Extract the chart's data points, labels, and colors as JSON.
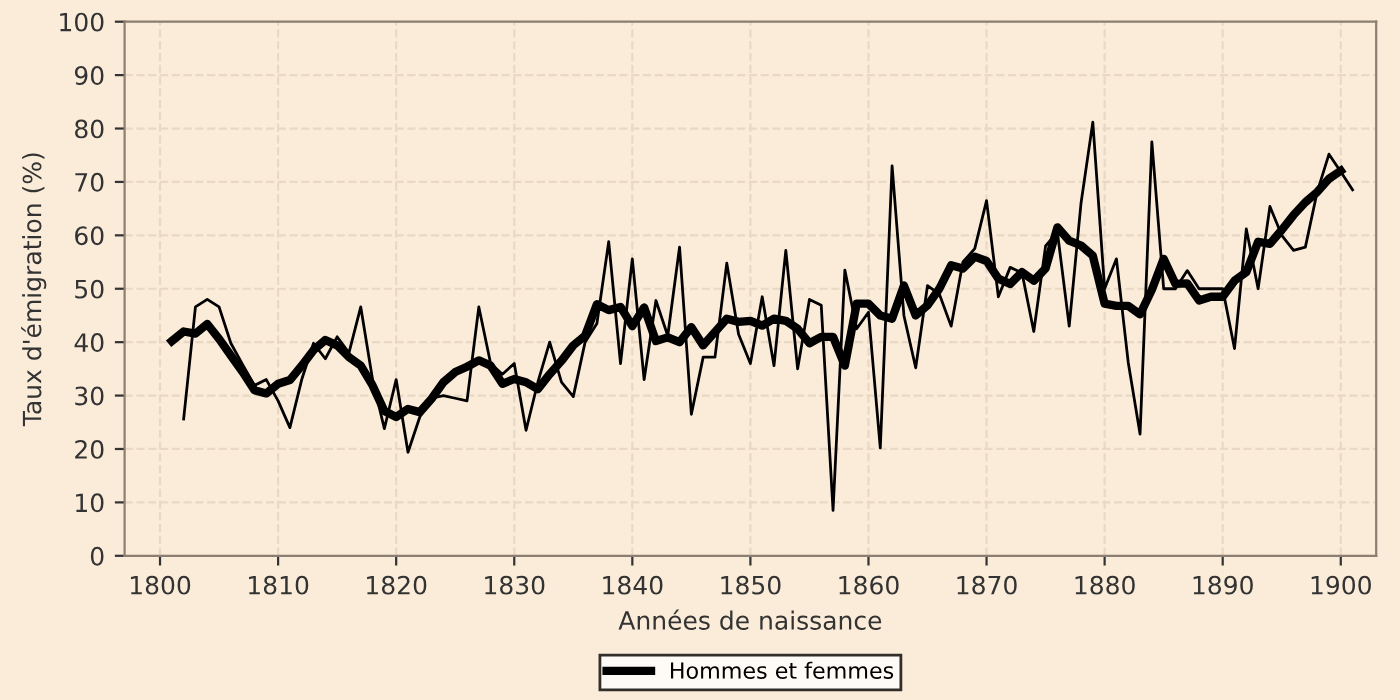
{
  "chart_data": {
    "type": "line",
    "xlabel": "Années de naissance",
    "ylabel": "Taux d'émigration (%)",
    "xlim": [
      1797,
      1903
    ],
    "ylim": [
      0,
      100
    ],
    "xticks": [
      1800,
      1810,
      1820,
      1830,
      1840,
      1850,
      1860,
      1870,
      1880,
      1890,
      1900
    ],
    "yticks": [
      0,
      10,
      20,
      30,
      40,
      50,
      60,
      70,
      80,
      90,
      100
    ],
    "grid": true,
    "legend": "bottom",
    "marker": "none",
    "line_style": "solid",
    "series": [
      {
        "color": "#000000",
        "x": [
          1802,
          1803,
          1804,
          1805,
          1806,
          1807,
          1808,
          1809,
          1810,
          1811,
          1812,
          1813,
          1814,
          1815,
          1816,
          1817,
          1818,
          1819,
          1820,
          1821,
          1822,
          1823,
          1824,
          1825,
          1826,
          1827,
          1828,
          1829,
          1830,
          1831,
          1832,
          1833,
          1834,
          1835,
          1836,
          1837,
          1838,
          1839,
          1840,
          1841,
          1842,
          1843,
          1844,
          1845,
          1846,
          1847,
          1848,
          1849,
          1850,
          1851,
          1852,
          1853,
          1854,
          1855,
          1856,
          1857,
          1858,
          1859,
          1860,
          1861,
          1862,
          1863,
          1864,
          1865,
          1866,
          1867,
          1868,
          1869,
          1870,
          1871,
          1872,
          1873,
          1874,
          1875,
          1876,
          1877,
          1878,
          1879,
          1880,
          1881,
          1882,
          1883,
          1884,
          1885,
          1886,
          1887,
          1888,
          1889,
          1890,
          1891,
          1892,
          1893,
          1894,
          1895,
          1896,
          1897,
          1898,
          1899,
          1900,
          1901
        ],
        "values": [
          25.6,
          46.6,
          48,
          46.6,
          39.8,
          35.8,
          31.9,
          33,
          29,
          24,
          33,
          39.8,
          36.9,
          41,
          38,
          46.6,
          33,
          23.8,
          33,
          19.4,
          26,
          29.5,
          30,
          29.5,
          29,
          46.6,
          36,
          34,
          36,
          23.5,
          32.5,
          40,
          32.5,
          29.8,
          40,
          43.5,
          58.8,
          36,
          55.6,
          33,
          47.8,
          41.2,
          57.8,
          26.5,
          37.2,
          37.2,
          54.8,
          41.5,
          36,
          48.5,
          35.6,
          57.2,
          35,
          48,
          46.9,
          8.5,
          53.5,
          42.5,
          45.6,
          20.2,
          73,
          45,
          35.2,
          50.6,
          49,
          43,
          55,
          57.5,
          66.5,
          48.5,
          54,
          53,
          42,
          58,
          60.6,
          43,
          66,
          81.2,
          50,
          55.6,
          36.2,
          22.8,
          77.5,
          50,
          50,
          53.4,
          50,
          50,
          50,
          38.8,
          61.2,
          50,
          65.4,
          60,
          57.2,
          57.8,
          68.1,
          75.2,
          71.9,
          68.5
        ]
      },
      {
        "name": "Hommes et femmes",
        "color": "#000000",
        "x": [
          1801,
          1802,
          1803,
          1804,
          1805,
          1806,
          1807,
          1808,
          1809,
          1810,
          1811,
          1812,
          1813,
          1814,
          1815,
          1816,
          1817,
          1818,
          1819,
          1820,
          1821,
          1822,
          1823,
          1824,
          1825,
          1826,
          1827,
          1828,
          1829,
          1830,
          1831,
          1832,
          1833,
          1834,
          1835,
          1836,
          1837,
          1838,
          1839,
          1840,
          1841,
          1842,
          1843,
          1844,
          1845,
          1846,
          1847,
          1848,
          1849,
          1850,
          1851,
          1852,
          1853,
          1854,
          1855,
          1856,
          1857,
          1858,
          1859,
          1860,
          1861,
          1862,
          1863,
          1864,
          1865,
          1866,
          1867,
          1868,
          1869,
          1870,
          1871,
          1872,
          1873,
          1874,
          1875,
          1876,
          1877,
          1878,
          1879,
          1880,
          1881,
          1882,
          1883,
          1884,
          1885,
          1886,
          1887,
          1888,
          1889,
          1890,
          1891,
          1892,
          1893,
          1894,
          1895,
          1896,
          1897,
          1898,
          1899,
          1900
        ],
        "values": [
          40.2,
          42,
          41.6,
          43.4,
          40.6,
          37.5,
          34.4,
          31,
          30.4,
          32.2,
          32.9,
          35.6,
          38.5,
          40.4,
          39.4,
          37.2,
          35.6,
          31.9,
          27.1,
          26,
          27.5,
          26.9,
          29.4,
          32.5,
          34.4,
          35.4,
          36.6,
          35.6,
          32.2,
          33.1,
          32.5,
          31.2,
          34,
          36.5,
          39.4,
          41.2,
          47.1,
          46,
          46.6,
          43,
          46.5,
          40.2,
          40.9,
          40,
          42.8,
          39.4,
          41.9,
          44.4,
          43.8,
          44,
          43.1,
          44.4,
          44,
          42.5,
          39.8,
          41,
          41,
          35.6,
          47.2,
          47.2,
          45,
          44.4,
          50.6,
          45,
          46.9,
          50,
          54.4,
          53.8,
          56,
          55.2,
          51.9,
          50.9,
          53.1,
          51.5,
          53.8,
          61.5,
          59,
          58.1,
          56.2,
          47.2,
          46.8,
          46.8,
          45.2,
          49.8,
          55.6,
          50.9,
          51,
          47.8,
          48.5,
          48.5,
          51.5,
          53.1,
          58.8,
          58.4,
          61,
          63.8,
          66.2,
          68.1,
          70.6,
          72.1
        ]
      }
    ]
  }
}
